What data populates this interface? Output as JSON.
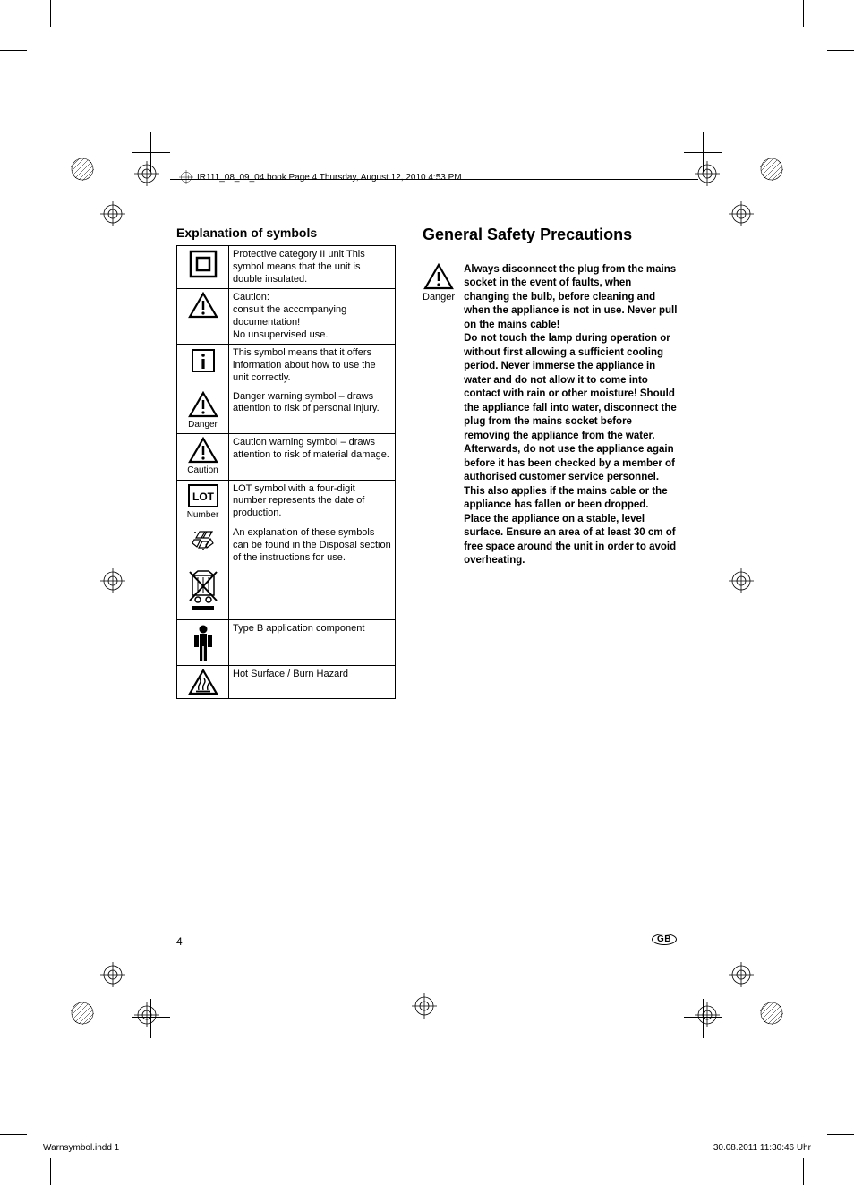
{
  "header": {
    "booktext": "IR111_08_09_04.book  Page 4  Thursday, August 12, 2010  4:53 PM"
  },
  "left": {
    "heading": "Explanation of symbols",
    "rows": [
      {
        "icon": "double-insulated",
        "text": "Protective category II unit This symbol means that the unit is double insulated."
      },
      {
        "icon": "caution-triangle",
        "text": "Caution:\nconsult the accompanying documentation!\nNo unsupervised use."
      },
      {
        "icon": "info-box",
        "text": "This symbol means that it offers information about how to use the unit correctly."
      },
      {
        "icon": "danger-triangle",
        "caption": "Danger",
        "text": "Danger warning symbol – draws attention to risk of personal injury."
      },
      {
        "icon": "danger-triangle",
        "caption": "Caution",
        "text": "Caution warning symbol – draws attention to risk of material damage."
      },
      {
        "icon": "lot-box",
        "caption": "Number",
        "text": "LOT symbol with a four-digit number represents the date of production."
      },
      {
        "icon": "recycle-weee",
        "text": "An explanation of these symbols can be found in the Disposal section of the instructions for use."
      },
      {
        "icon": "type-b",
        "text": "Type B application component"
      },
      {
        "icon": "hot-surface",
        "text": "Hot Surface / Burn Hazard"
      }
    ]
  },
  "right": {
    "heading": "General Safety Precautions",
    "danger_label": "Danger",
    "text": "Always disconnect the plug from the mains socket in the event of faults, when changing the bulb, before cleaning and when the appliance is not in use. Never pull on the mains cable!\nDo not touch the lamp during operation or without first allowing a sufficient cooling period. Never immerse the appliance in water and do not allow it to come into contact with rain or other moisture! Should the appliance fall into water, disconnect the plug from the mains socket before removing the appliance from the water.\nAfterwards, do not use the appliance again before it has been checked by a member of authorised customer service personnel. This also applies if the mains cable or the appliance has fallen or been dropped.\nPlace the appliance on a stable, level surface. Ensure an area of at least 30 cm of free space around the unit in order to avoid overheating."
  },
  "page_number": "4",
  "country_badge": "GB",
  "footer": {
    "left": "Warnsymbol.indd   1",
    "right": "30.08.2011   11:30:46 Uhr"
  },
  "colors": {
    "text": "#000000",
    "bg": "#ffffff"
  }
}
